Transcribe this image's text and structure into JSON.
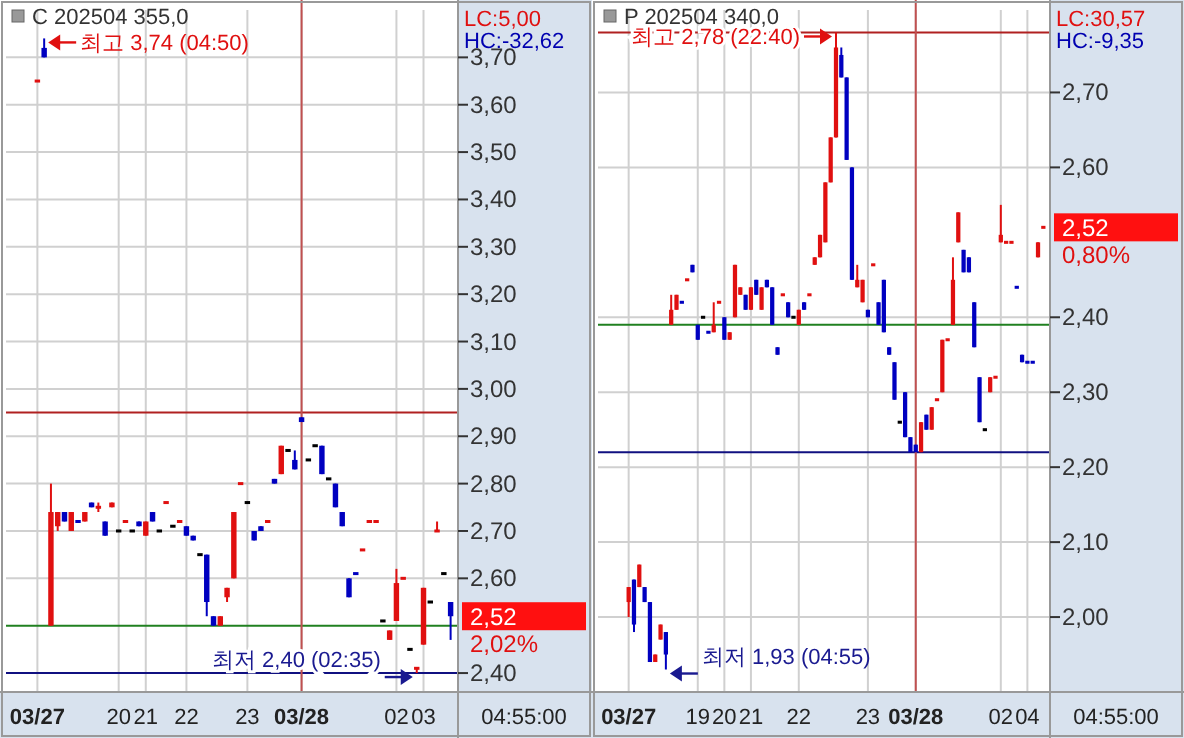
{
  "chart_data": [
    {
      "type": "candlestick",
      "title": "C 202504 355,0",
      "categories": [
        "03/27",
        null,
        null,
        null,
        null,
        null,
        null,
        null,
        null,
        null,
        null,
        null,
        "20",
        null,
        null,
        null,
        "21",
        null,
        null,
        null,
        null,
        null,
        "22",
        null,
        null,
        null,
        null,
        null,
        null,
        null,
        null,
        "23",
        null,
        null,
        null,
        null,
        null,
        null,
        null,
        "03/28",
        null,
        null,
        null,
        null,
        null,
        null,
        null,
        null,
        null,
        null,
        null,
        null,
        null,
        "02",
        null,
        null,
        null,
        "03",
        null,
        null,
        null,
        null
      ],
      "ohlc": [
        [
          3.65,
          3.65,
          3.65,
          3.65
        ],
        [
          3.72,
          3.74,
          3.7,
          3.7
        ],
        [
          2.5,
          2.8,
          2.5,
          2.74
        ],
        [
          2.71,
          2.74,
          2.7,
          2.74
        ],
        [
          2.74,
          2.74,
          2.72,
          2.72
        ],
        [
          2.7,
          2.74,
          2.7,
          2.74
        ],
        [
          2.72,
          2.72,
          2.72,
          2.72
        ],
        [
          2.72,
          2.74,
          2.72,
          2.74
        ],
        [
          2.76,
          2.76,
          2.75,
          2.75
        ],
        [
          2.75,
          2.76,
          2.74,
          2.75
        ],
        [
          2.72,
          2.72,
          2.69,
          2.69
        ],
        [
          2.75,
          2.76,
          2.75,
          2.76
        ],
        [
          2.7,
          2.7,
          2.7,
          2.7
        ],
        [
          2.72,
          2.72,
          2.72,
          2.72
        ],
        [
          2.7,
          2.7,
          2.7,
          2.7
        ],
        [
          2.72,
          2.72,
          2.71,
          2.71
        ],
        [
          2.69,
          2.72,
          2.69,
          2.72
        ],
        [
          2.74,
          2.74,
          2.72,
          2.72
        ],
        [
          2.7,
          2.7,
          2.7,
          2.7
        ],
        [
          2.76,
          2.76,
          2.76,
          2.76
        ],
        [
          2.71,
          2.71,
          2.71,
          2.71
        ],
        [
          2.72,
          2.72,
          2.72,
          2.72
        ],
        [
          2.71,
          2.71,
          2.69,
          2.69
        ],
        [
          2.69,
          2.69,
          2.68,
          2.68
        ],
        [
          2.65,
          2.65,
          2.65,
          2.65
        ],
        [
          2.65,
          2.65,
          2.52,
          2.55
        ],
        [
          2.52,
          2.52,
          2.5,
          2.5
        ],
        [
          2.5,
          2.52,
          2.5,
          2.52
        ],
        [
          2.56,
          2.58,
          2.55,
          2.58
        ],
        [
          2.6,
          2.74,
          2.6,
          2.74
        ],
        [
          2.8,
          2.8,
          2.8,
          2.8
        ],
        [
          2.76,
          2.76,
          2.76,
          2.76
        ],
        [
          2.7,
          2.7,
          2.68,
          2.68
        ],
        [
          2.71,
          2.71,
          2.7,
          2.7
        ],
        [
          2.72,
          2.72,
          2.72,
          2.72
        ],
        [
          2.81,
          2.81,
          2.8,
          2.8
        ],
        [
          2.82,
          2.88,
          2.82,
          2.88
        ],
        [
          2.87,
          2.87,
          2.87,
          2.87
        ],
        [
          2.85,
          2.87,
          2.83,
          2.83
        ],
        [
          2.94,
          2.94,
          2.93,
          2.93
        ],
        [
          2.85,
          2.85,
          2.85,
          2.85
        ],
        [
          2.88,
          2.88,
          2.88,
          2.88
        ],
        [
          2.88,
          2.88,
          2.82,
          2.82
        ],
        [
          2.81,
          2.81,
          2.81,
          2.81
        ],
        [
          2.8,
          2.8,
          2.75,
          2.75
        ],
        [
          2.74,
          2.74,
          2.71,
          2.71
        ],
        [
          2.6,
          2.6,
          2.56,
          2.56
        ],
        [
          2.61,
          2.61,
          2.61,
          2.61
        ],
        [
          2.66,
          2.66,
          2.66,
          2.66
        ],
        [
          2.72,
          2.72,
          2.72,
          2.72
        ],
        [
          2.72,
          2.72,
          2.72,
          2.72
        ],
        [
          2.51,
          2.51,
          2.51,
          2.51
        ],
        [
          2.47,
          2.49,
          2.47,
          2.49
        ],
        [
          2.51,
          2.62,
          2.51,
          2.59
        ],
        [
          2.6,
          2.6,
          2.6,
          2.6
        ],
        [
          2.45,
          2.45,
          2.45,
          2.45
        ],
        [
          2.41,
          2.41,
          2.4,
          2.41
        ],
        [
          2.46,
          2.58,
          2.46,
          2.58
        ],
        [
          2.55,
          2.55,
          2.55,
          2.55
        ],
        [
          2.7,
          2.72,
          2.7,
          2.7
        ],
        [
          2.61,
          2.61,
          2.61,
          2.61
        ],
        [
          2.55,
          2.55,
          2.47,
          2.52
        ]
      ],
      "colors": [
        "#e01010",
        "#0000c0",
        "#e01010",
        "#e01010",
        "#0000c0",
        "#e01010",
        "#0000c0",
        "#e01010",
        "#0000c0",
        "#e01010",
        "#0000c0",
        "#e01010",
        "#000000",
        "#e01010",
        "#000000",
        "#0000c0",
        "#e01010",
        "#0000c0",
        "#000000",
        "#e01010",
        "#000000",
        "#e01010",
        "#0000c0",
        "#0000c0",
        "#000000",
        "#0000c0",
        "#0000c0",
        "#e01010",
        "#e01010",
        "#e01010",
        "#e01010",
        "#000000",
        "#0000c0",
        "#0000c0",
        "#e01010",
        "#0000c0",
        "#e01010",
        "#000000",
        "#0000c0",
        "#0000c0",
        "#000000",
        "#000000",
        "#0000c0",
        "#000000",
        "#0000c0",
        "#0000c0",
        "#0000c0",
        "#0000c0",
        "#e01010",
        "#e01010",
        "#e01010",
        "#000000",
        "#e01010",
        "#e01010",
        "#e01010",
        "#000000",
        "#e01010",
        "#e01010",
        "#000000",
        "#e01010",
        "#000000",
        "#0000c0"
      ],
      "ylim": [
        2.36,
        3.8
      ],
      "yticks": [
        {
          "value": 2.4,
          "label": "2,40"
        },
        {
          "value": 2.6,
          "label": "2,60"
        },
        {
          "value": 2.7,
          "label": "2,70"
        },
        {
          "value": 2.8,
          "label": "2,80"
        },
        {
          "value": 2.9,
          "label": "2,90"
        },
        {
          "value": 3.0,
          "label": "3,00"
        },
        {
          "value": 3.1,
          "label": "3,10"
        },
        {
          "value": 3.2,
          "label": "3,20"
        },
        {
          "value": 3.3,
          "label": "3,30"
        },
        {
          "value": 3.4,
          "label": "3,40"
        },
        {
          "value": 3.5,
          "label": "3,50"
        },
        {
          "value": 3.6,
          "label": "3,60"
        },
        {
          "value": 3.7,
          "label": "3,70"
        }
      ],
      "grid": true,
      "ref_lines": [
        {
          "axis": "y",
          "value": 2.95,
          "color": "#b02020"
        },
        {
          "axis": "y",
          "value": 2.5,
          "color": "#208020"
        },
        {
          "axis": "y",
          "value": 2.4,
          "color": "#101080"
        },
        {
          "axis": "x",
          "value": "03/28",
          "color": "#c05050"
        }
      ],
      "annotations": [
        "LC:5,00",
        "HC:-32,62",
        "최고 3,74 (04:50)",
        "최저 2,40 (02:35)",
        "2,52",
        "2,02%",
        "04:55:00"
      ]
    },
    {
      "type": "candlestick",
      "title": "P 202504 340,0",
      "categories": [
        "03/27",
        null,
        null,
        null,
        null,
        null,
        null,
        null,
        null,
        null,
        null,
        null,
        null,
        "19",
        null,
        null,
        null,
        null,
        "20",
        null,
        null,
        null,
        null,
        "21",
        null,
        null,
        null,
        null,
        null,
        null,
        null,
        null,
        "22",
        null,
        null,
        null,
        null,
        null,
        null,
        null,
        null,
        null,
        null,
        null,
        null,
        "23",
        null,
        null,
        null,
        null,
        null,
        null,
        null,
        null,
        "03/28",
        null,
        null,
        null,
        null,
        null,
        null,
        null,
        null,
        null,
        null,
        null,
        null,
        null,
        null,
        null,
        "02",
        null,
        null,
        null,
        null,
        "04",
        null,
        null,
        null
      ],
      "ohlc": [
        [
          2.02,
          2.04,
          2.0,
          2.04
        ],
        [
          2.05,
          2.05,
          1.98,
          1.99
        ],
        [
          2.04,
          2.07,
          2.04,
          2.07
        ],
        [
          2.04,
          2.04,
          2.02,
          2.02
        ],
        [
          2.02,
          2.02,
          1.94,
          1.94
        ],
        [
          1.94,
          1.95,
          1.94,
          1.95
        ],
        [
          1.97,
          1.99,
          1.97,
          1.99
        ],
        [
          1.98,
          1.98,
          1.93,
          1.95
        ],
        [
          2.39,
          2.43,
          2.39,
          2.41
        ],
        [
          2.41,
          2.43,
          2.41,
          2.43
        ],
        [
          2.42,
          2.42,
          2.42,
          2.42
        ],
        [
          2.45,
          2.45,
          2.45,
          2.45
        ],
        [
          2.47,
          2.47,
          2.46,
          2.46
        ],
        [
          2.39,
          2.39,
          2.37,
          2.37
        ],
        [
          2.4,
          2.4,
          2.4,
          2.4
        ],
        [
          2.38,
          2.38,
          2.38,
          2.38
        ],
        [
          2.38,
          2.42,
          2.38,
          2.39
        ],
        [
          2.42,
          2.42,
          2.42,
          2.42
        ],
        [
          2.4,
          2.4,
          2.37,
          2.37
        ],
        [
          2.37,
          2.38,
          2.37,
          2.38
        ],
        [
          2.4,
          2.47,
          2.4,
          2.47
        ],
        [
          2.43,
          2.44,
          2.43,
          2.44
        ],
        [
          2.43,
          2.43,
          2.41,
          2.41
        ],
        [
          2.41,
          2.44,
          2.41,
          2.44
        ],
        [
          2.45,
          2.45,
          2.43,
          2.43
        ],
        [
          2.41,
          2.44,
          2.41,
          2.44
        ],
        [
          2.45,
          2.45,
          2.44,
          2.44
        ],
        [
          2.44,
          2.44,
          2.39,
          2.39
        ],
        [
          2.36,
          2.36,
          2.35,
          2.35
        ],
        [
          2.43,
          2.43,
          2.43,
          2.43
        ],
        [
          2.42,
          2.42,
          2.4,
          2.4
        ],
        [
          2.4,
          2.4,
          2.4,
          2.4
        ],
        [
          2.39,
          2.41,
          2.39,
          2.41
        ],
        [
          2.42,
          2.42,
          2.41,
          2.41
        ],
        [
          2.43,
          2.43,
          2.43,
          2.43
        ],
        [
          2.47,
          2.48,
          2.47,
          2.48
        ],
        [
          2.48,
          2.51,
          2.48,
          2.51
        ],
        [
          2.5,
          2.58,
          2.5,
          2.58
        ],
        [
          2.58,
          2.64,
          2.58,
          2.64
        ],
        [
          2.64,
          2.78,
          2.64,
          2.76
        ],
        [
          2.75,
          2.76,
          2.72,
          2.72
        ],
        [
          2.72,
          2.72,
          2.61,
          2.61
        ],
        [
          2.6,
          2.6,
          2.45,
          2.45
        ],
        [
          2.44,
          2.47,
          2.44,
          2.45
        ],
        [
          2.42,
          2.45,
          2.42,
          2.45
        ],
        [
          2.41,
          2.41,
          2.4,
          2.4
        ],
        [
          2.47,
          2.47,
          2.47,
          2.47
        ],
        [
          2.42,
          2.42,
          2.39,
          2.39
        ],
        [
          2.45,
          2.45,
          2.38,
          2.38
        ],
        [
          2.36,
          2.36,
          2.35,
          2.35
        ],
        [
          2.34,
          2.34,
          2.29,
          2.29
        ],
        [
          2.26,
          2.26,
          2.26,
          2.26
        ],
        [
          2.3,
          2.3,
          2.24,
          2.24
        ],
        [
          2.24,
          2.24,
          2.22,
          2.22
        ],
        [
          2.23,
          2.23,
          2.22,
          2.22
        ],
        [
          2.22,
          2.26,
          2.22,
          2.26
        ],
        [
          2.27,
          2.27,
          2.25,
          2.25
        ],
        [
          2.25,
          2.28,
          2.25,
          2.28
        ],
        [
          2.29,
          2.29,
          2.29,
          2.29
        ],
        [
          2.3,
          2.37,
          2.3,
          2.37
        ],
        [
          2.37,
          2.37,
          2.37,
          2.37
        ],
        [
          2.39,
          2.48,
          2.39,
          2.45
        ],
        [
          2.5,
          2.54,
          2.5,
          2.54
        ],
        [
          2.49,
          2.49,
          2.46,
          2.46
        ],
        [
          2.48,
          2.48,
          2.46,
          2.46
        ],
        [
          2.42,
          2.42,
          2.36,
          2.36
        ],
        [
          2.32,
          2.32,
          2.26,
          2.26
        ],
        [
          2.25,
          2.25,
          2.25,
          2.25
        ],
        [
          2.3,
          2.32,
          2.3,
          2.32
        ],
        [
          2.32,
          2.32,
          2.32,
          2.32
        ],
        [
          2.5,
          2.55,
          2.5,
          2.51
        ],
        [
          2.5,
          2.5,
          2.5,
          2.5
        ],
        [
          2.5,
          2.5,
          2.5,
          2.5
        ],
        [
          2.44,
          2.44,
          2.44,
          2.44
        ],
        [
          2.35,
          2.35,
          2.34,
          2.34
        ],
        [
          2.34,
          2.34,
          2.34,
          2.34
        ],
        [
          2.34,
          2.34,
          2.34,
          2.34
        ],
        [
          2.48,
          2.5,
          2.48,
          2.5
        ],
        [
          2.52,
          2.52,
          2.52,
          2.52
        ]
      ],
      "colors": [
        "#e01010",
        "#0000c0",
        "#e01010",
        "#0000c0",
        "#0000c0",
        "#e01010",
        "#e01010",
        "#0000c0",
        "#e01010",
        "#e01010",
        "#0000c0",
        "#e01010",
        "#0000c0",
        "#0000c0",
        "#000000",
        "#0000c0",
        "#e01010",
        "#e01010",
        "#0000c0",
        "#e01010",
        "#e01010",
        "#e01010",
        "#0000c0",
        "#e01010",
        "#0000c0",
        "#e01010",
        "#0000c0",
        "#0000c0",
        "#0000c0",
        "#e01010",
        "#0000c0",
        "#000000",
        "#e01010",
        "#0000c0",
        "#e01010",
        "#e01010",
        "#e01010",
        "#e01010",
        "#e01010",
        "#e01010",
        "#0000c0",
        "#0000c0",
        "#0000c0",
        "#e01010",
        "#e01010",
        "#0000c0",
        "#e01010",
        "#0000c0",
        "#0000c0",
        "#0000c0",
        "#0000c0",
        "#000000",
        "#0000c0",
        "#0000c0",
        "#0000c0",
        "#e01010",
        "#0000c0",
        "#e01010",
        "#e01010",
        "#e01010",
        "#e01010",
        "#e01010",
        "#e01010",
        "#0000c0",
        "#0000c0",
        "#0000c0",
        "#0000c0",
        "#000000",
        "#e01010",
        "#e01010",
        "#e01010",
        "#e01010",
        "#e01010",
        "#0000c0",
        "#0000c0",
        "#0000c0",
        "#0000c0",
        "#e01010",
        "#e01010"
      ],
      "ylim": [
        1.9,
        2.81
      ],
      "yticks": [
        {
          "value": 2.0,
          "label": "2,00"
        },
        {
          "value": 2.1,
          "label": "2,10"
        },
        {
          "value": 2.2,
          "label": "2,20"
        },
        {
          "value": 2.3,
          "label": "2,30"
        },
        {
          "value": 2.4,
          "label": "2,40"
        },
        {
          "value": 2.6,
          "label": "2,60"
        },
        {
          "value": 2.7,
          "label": "2,70"
        }
      ],
      "grid": true,
      "ref_lines": [
        {
          "axis": "y",
          "value": 2.78,
          "color": "#b02020"
        },
        {
          "axis": "y",
          "value": 2.39,
          "color": "#208020"
        },
        {
          "axis": "y",
          "value": 2.22,
          "color": "#101080"
        },
        {
          "axis": "x",
          "value": "03/28",
          "color": "#c05050"
        }
      ],
      "annotations": [
        "LC:30,57",
        "HC:-9,35",
        "최고 2,78 (22:40)",
        "최저 1,93 (04:55)",
        "2,52",
        "0,80%",
        "04:55:00"
      ]
    }
  ]
}
